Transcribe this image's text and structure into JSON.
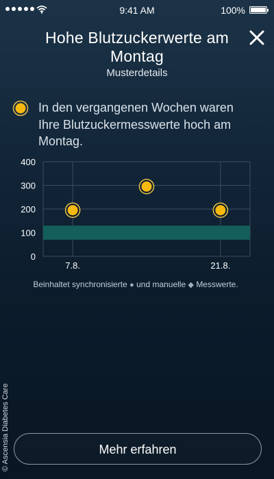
{
  "status_bar": {
    "time": "9:41 AM",
    "battery_percent": "100%",
    "battery_level": 1.0,
    "signal_bars": 5
  },
  "header": {
    "title": "Hohe Blutzuckerwerte am Montag",
    "subtitle": "Musterdetails"
  },
  "description": "In den vergangenen Wochen waren Ihre Blutzuckermesswerte hoch am Montag.",
  "chart_data": {
    "type": "scatter",
    "ylim": [
      0,
      400
    ],
    "y_ticks": [
      "0",
      "100",
      "200",
      "300",
      "400"
    ],
    "x_tick_labels": [
      "7.8.",
      "21.8."
    ],
    "target_range": [
      70,
      130
    ],
    "points": [
      {
        "week": 1,
        "y": 195
      },
      {
        "week": 2,
        "y": 295
      },
      {
        "week": 3,
        "y": 195
      }
    ],
    "x_range": [
      0.6,
      3.4
    ],
    "grid": true
  },
  "footnote": {
    "prefix": "Beinhaltet synchronisierte",
    "synced_glyph": "●",
    "middle": "und manuelle",
    "manual_glyph": "◆",
    "suffix": "Messwerte."
  },
  "copyright": "© Ascensia Diabetes Care",
  "cta": {
    "label": "Mehr erfahren"
  },
  "colors": {
    "accent_dot": "#f5b90f",
    "dot_ring": "#e8c24a",
    "target_band": "#145e5c",
    "grid": "#3c4d5e"
  }
}
